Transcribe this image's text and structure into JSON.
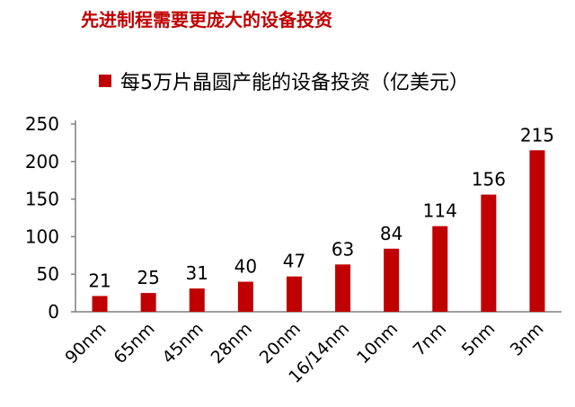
{
  "header": {
    "title": "先进制程需要更庞大的设备投资"
  },
  "colors": {
    "title": "#c00000",
    "bar": "#c00000",
    "axis": "#7f7f7f"
  },
  "chart_data": {
    "type": "bar",
    "categories": [
      "90nm",
      "65nm",
      "45nm",
      "28nm",
      "20nm",
      "16/14nm",
      "10nm",
      "7nm",
      "5nm",
      "3nm"
    ],
    "series": [
      {
        "name": "每5万片晶圆产能的设备投资（亿美元）",
        "values": [
          21,
          25,
          31,
          40,
          47,
          63,
          84,
          114,
          156,
          215
        ]
      }
    ],
    "title": "先进制程需要更庞大的设备投资",
    "xlabel": "",
    "ylabel": "",
    "ylim": [
      0,
      250
    ],
    "yticks": [
      0,
      50,
      100,
      150,
      200,
      250
    ],
    "grid": false,
    "legend_position": "top",
    "data_labels": true
  }
}
